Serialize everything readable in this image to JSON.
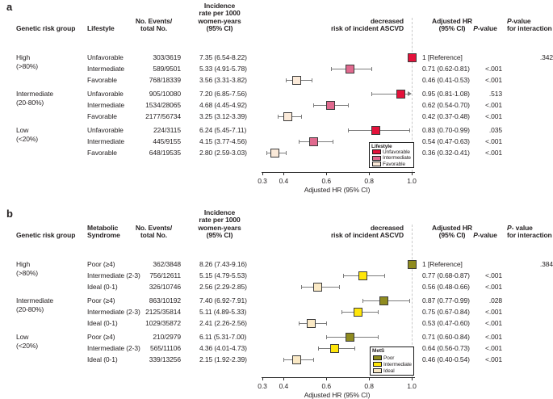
{
  "figure": {
    "panel_labels": [
      "a",
      "b"
    ]
  },
  "chart_data": [
    {
      "type": "forest",
      "panel_label": "a",
      "headers": {
        "group": "Genetic risk group",
        "exposure": [
          "Lifestyle"
        ],
        "events": [
          "No. Events/",
          "total No."
        ],
        "incidence": [
          "Incidence",
          "rate per 1000",
          "women-years",
          "(95% CI)"
        ],
        "plot": [
          "decreased",
          "risk of incident ASCVD"
        ],
        "hr": [
          "Adjusted HR",
          "(95% CI)"
        ],
        "p": "P-value",
        "p_interaction": [
          "P-value",
          "for interaction"
        ]
      },
      "axis": {
        "scale": "linear",
        "min": 0.3,
        "max": 1.0,
        "tick_values": [
          0.3,
          0.4,
          0.6,
          0.8,
          1.0
        ],
        "ticks": [
          "0.3",
          "0.4",
          "0.6",
          "0.8",
          "1.0"
        ],
        "label": "Adjusted HR (95% CI)",
        "ref_line": 1.0
      },
      "legend": {
        "title": "Lifestyle",
        "entries": [
          {
            "label": "Unfavorable",
            "color": "#e4123b"
          },
          {
            "label": "Intermediate",
            "color": "#e0698e"
          },
          {
            "label": "Favorable",
            "color": "#fbead9"
          }
        ]
      },
      "p_interaction": ".342",
      "groups": [
        {
          "name": "High",
          "range": "(>80%)",
          "rows": [
            {
              "label": "Unfavorable",
              "events": "303/3619",
              "incidence": "7.35 (6.54-8.22)",
              "hr": 1.0,
              "ci_low": null,
              "ci_high": null,
              "hr_text": "1 [Reference]",
              "p": "",
              "reference": true
            },
            {
              "label": "Intermediate",
              "events": "589/9501",
              "incidence": "5.33 (4.91-5.78)",
              "hr": 0.71,
              "ci_low": 0.62,
              "ci_high": 0.81,
              "hr_text": "0.71 (0.62-0.81)",
              "p": "<.001",
              "reference": false
            },
            {
              "label": "Favorable",
              "events": "768/18339",
              "incidence": "3.56 (3.31-3.82)",
              "hr": 0.46,
              "ci_low": 0.41,
              "ci_high": 0.53,
              "hr_text": "0.46 (0.41-0.53)",
              "p": "<.001",
              "reference": false
            }
          ]
        },
        {
          "name": "Intermediate",
          "range": "(20-80%)",
          "rows": [
            {
              "label": "Unfavorable",
              "events": "905/10080",
              "incidence": "7.20 (6.85-7.56)",
              "hr": 0.95,
              "ci_low": 0.81,
              "ci_high": 1.08,
              "hr_text": "0.95 (0.81-1.08)",
              "p": ".513",
              "reference": false
            },
            {
              "label": "Intermediate",
              "events": "1534/28065",
              "incidence": "4.68 (4.45-4.92)",
              "hr": 0.62,
              "ci_low": 0.54,
              "ci_high": 0.7,
              "hr_text": "0.62 (0.54-0.70)",
              "p": "<.001",
              "reference": false
            },
            {
              "label": "Favorable",
              "events": "2177/56734",
              "incidence": "3.25 (3.12-3.39)",
              "hr": 0.42,
              "ci_low": 0.37,
              "ci_high": 0.48,
              "hr_text": "0.42 (0.37-0.48)",
              "p": "<.001",
              "reference": false
            }
          ]
        },
        {
          "name": "Low",
          "range": "(<20%)",
          "rows": [
            {
              "label": "Unfavorable",
              "events": "224/3115",
              "incidence": "6.24 (5.45-7.11)",
              "hr": 0.83,
              "ci_low": 0.7,
              "ci_high": 0.99,
              "hr_text": "0.83 (0.70-0.99)",
              "p": ".035",
              "reference": false
            },
            {
              "label": "Intermediate",
              "events": "445/9155",
              "incidence": "4.15 (3.77-4.56)",
              "hr": 0.54,
              "ci_low": 0.47,
              "ci_high": 0.63,
              "hr_text": "0.54 (0.47-0.63)",
              "p": "<.001",
              "reference": false
            },
            {
              "label": "Favorable",
              "events": "648/19535",
              "incidence": "2.80 (2.59-3.03)",
              "hr": 0.36,
              "ci_low": 0.32,
              "ci_high": 0.41,
              "hr_text": "0.36 (0.32-0.41)",
              "p": "<.001",
              "reference": false
            }
          ]
        }
      ]
    },
    {
      "type": "forest",
      "panel_label": "b",
      "headers": {
        "group": "Genetic risk group",
        "exposure": [
          "Metabolic",
          "Syndrome"
        ],
        "events": [
          "No. Events/",
          "total No."
        ],
        "incidence": [
          "Incidence",
          "rate per 1000",
          "women-years",
          "(95% CI)"
        ],
        "plot": [
          "decreased",
          "risk of incident ASCVD"
        ],
        "hr": [
          "Adjusted HR",
          "(95% CI)"
        ],
        "p": "P-value",
        "p_interaction": [
          "P- value",
          "for interaction"
        ]
      },
      "axis": {
        "scale": "linear",
        "min": 0.3,
        "max": 1.0,
        "tick_values": [
          0.3,
          0.4,
          0.6,
          0.8,
          1.0
        ],
        "ticks": [
          "0.3",
          "0.4",
          "0.6",
          "0.8",
          "1.0"
        ],
        "label": "Adjusted HR (95% CI)",
        "ref_line": 1.0
      },
      "legend": {
        "title": "MetS",
        "entries": [
          {
            "label": "Poor",
            "color": "#8f8b1f"
          },
          {
            "label": "Intermediate",
            "color": "#ffe60a"
          },
          {
            "label": "Ideal",
            "color": "#fae9c5"
          }
        ]
      },
      "p_interaction": ".384",
      "groups": [
        {
          "name": "High",
          "range": "(>80%)",
          "rows": [
            {
              "label": "Poor (≥4)",
              "events": "362/3848",
              "incidence": "8.26 (7.43-9.16)",
              "hr": 1.0,
              "ci_low": null,
              "ci_high": null,
              "hr_text": "1 [Reference]",
              "p": "",
              "reference": true
            },
            {
              "label": "Intermediate (2-3)",
              "events": "756/12611",
              "incidence": "5.15 (4.79-5.53)",
              "hr": 0.77,
              "ci_low": 0.68,
              "ci_high": 0.87,
              "hr_text": "0.77 (0.68-0.87)",
              "p": "<.001",
              "reference": false
            },
            {
              "label": "Ideal (0-1)",
              "events": "326/10746",
              "incidence": "2.56 (2.29-2.85)",
              "hr": 0.56,
              "ci_low": 0.48,
              "ci_high": 0.66,
              "hr_text": "0.56 (0.48-0.66)",
              "p": "<.001",
              "reference": false
            }
          ]
        },
        {
          "name": "Intermediate",
          "range": "(20-80%)",
          "rows": [
            {
              "label": "Poor (≥4)",
              "events": "863/10192",
              "incidence": "7.40 (6.92-7.91)",
              "hr": 0.87,
              "ci_low": 0.77,
              "ci_high": 0.99,
              "hr_text": "0.87 (0.77-0.99)",
              "p": ".028",
              "reference": false
            },
            {
              "label": "Intermediate (2-3)",
              "events": "2125/35814",
              "incidence": "5.11 (4.89-5.33)",
              "hr": 0.75,
              "ci_low": 0.67,
              "ci_high": 0.84,
              "hr_text": "0.75 (0.67-0.84)",
              "p": "<.001",
              "reference": false
            },
            {
              "label": "Ideal (0-1)",
              "events": "1029/35872",
              "incidence": "2.41 (2.26-2.56)",
              "hr": 0.53,
              "ci_low": 0.47,
              "ci_high": 0.6,
              "hr_text": "0.53 (0.47-0.60)",
              "p": "<.001",
              "reference": false
            }
          ]
        },
        {
          "name": "Low",
          "range": "(<20%)",
          "rows": [
            {
              "label": "Poor (≥4)",
              "events": "210/2979",
              "incidence": "6.11 (5.31-7.00)",
              "hr": 0.71,
              "ci_low": 0.6,
              "ci_high": 0.84,
              "hr_text": "0.71 (0.60-0.84)",
              "p": "<.001",
              "reference": false
            },
            {
              "label": "Intermediate (2-3)",
              "events": "565/11106",
              "incidence": "4.36 (4.01-4.73)",
              "hr": 0.64,
              "ci_low": 0.56,
              "ci_high": 0.73,
              "hr_text": "0.64 (0.56-0.73)",
              "p": "<.001",
              "reference": false
            },
            {
              "label": "Ideal (0-1)",
              "events": "339/13256",
              "incidence": "2.15 (1.92-2.39)",
              "hr": 0.46,
              "ci_low": 0.4,
              "ci_high": 0.54,
              "hr_text": "0.46 (0.40-0.54)",
              "p": "<.001",
              "reference": false
            }
          ]
        }
      ]
    }
  ],
  "style_colors": {
    "text": "#231f20",
    "axis": "#2a2a2a",
    "whisker": "#7c7c7c",
    "marker_border": "#3b3b3b",
    "reference_dash": "#c9c9c9"
  }
}
